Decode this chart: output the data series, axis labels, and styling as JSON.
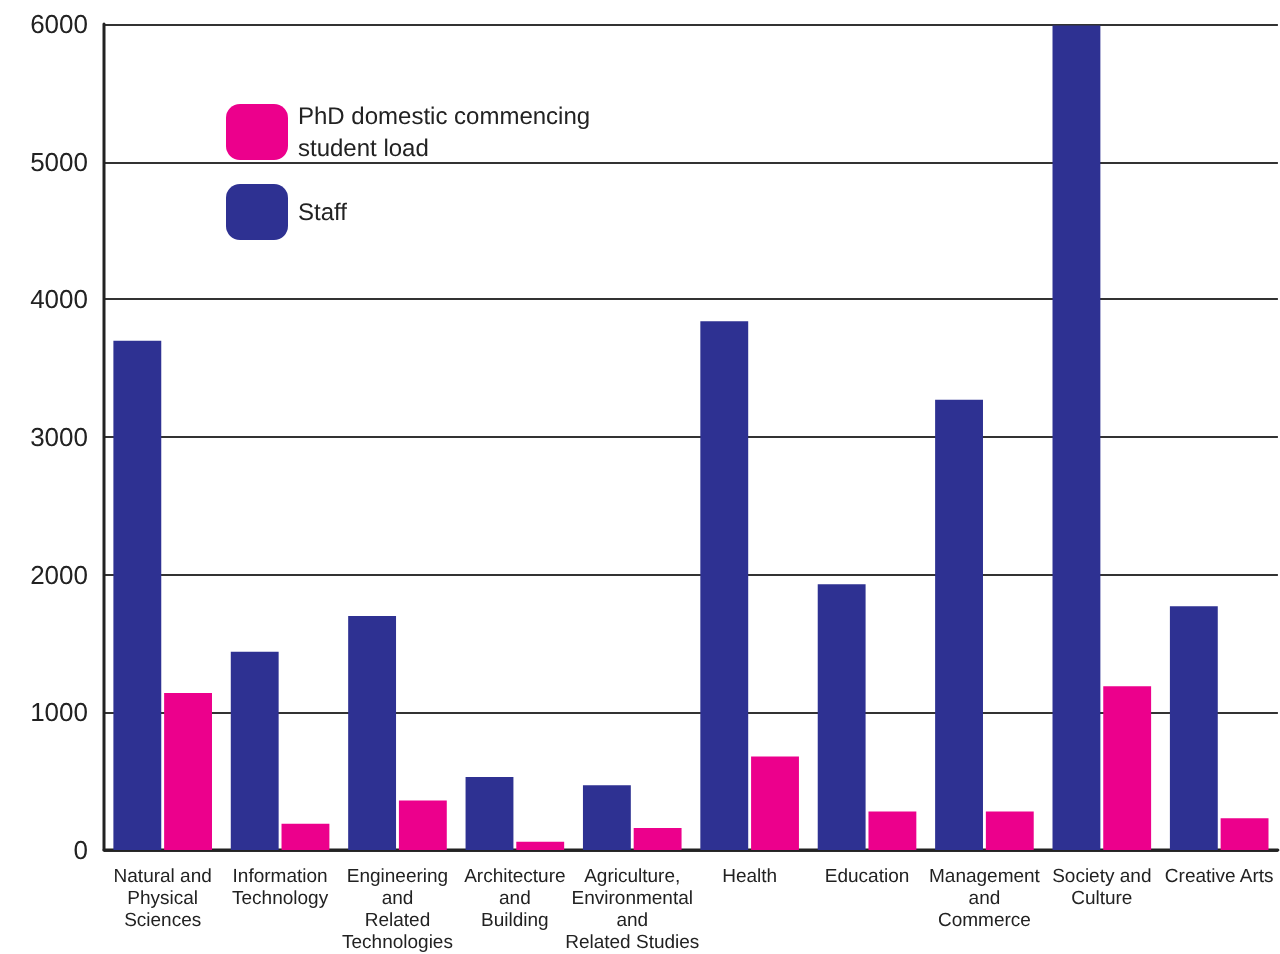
{
  "chart_data": {
    "type": "bar",
    "categories": [
      "Natural and\nPhysical\nSciences",
      "Information\nTechnology",
      "Engineering\nand\nRelated\nTechnologies",
      "Architecture\nand\nBuilding",
      "Agriculture,\nEnvironmental\nand\nRelated Studies",
      "Health",
      "Education",
      "Management\nand\nCommerce",
      "Society and\nCulture",
      "Creative Arts"
    ],
    "series": [
      {
        "name": "Staff",
        "color": "#2e3192",
        "values": [
          3700,
          1440,
          1700,
          530,
          470,
          3840,
          1930,
          3270,
          5990,
          1770
        ]
      },
      {
        "name": "PhD domestic commencing\nstudent load",
        "color": "#ec008c",
        "values": [
          1140,
          190,
          360,
          60,
          160,
          680,
          280,
          280,
          1190,
          230
        ]
      }
    ],
    "ylim": [
      0,
      6000
    ],
    "yticks": [
      0,
      1000,
      2000,
      3000,
      4000,
      5000,
      6000
    ],
    "grid": "y",
    "legend": "top left"
  }
}
